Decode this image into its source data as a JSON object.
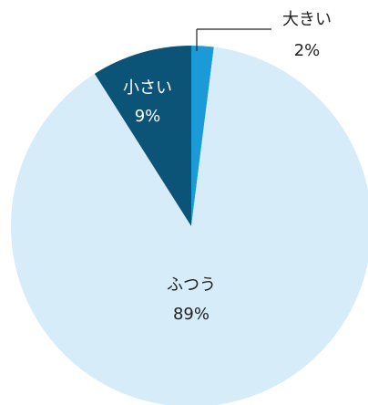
{
  "chart_data": {
    "type": "pie",
    "slices": [
      {
        "label": "大きい",
        "percent_label": "2%",
        "value": 2,
        "color": "#1a9ad6"
      },
      {
        "label": "ふつう",
        "percent_label": "89%",
        "value": 89,
        "color": "#d6ecf9"
      },
      {
        "label": "小さい",
        "percent_label": "9%",
        "value": 9,
        "color": "#0b5478"
      }
    ],
    "start_angle_deg": 0,
    "direction": "clockwise",
    "label_colors": {
      "dark_text": "#222222",
      "light_text": "#ffffff",
      "leader_line": "#222222"
    }
  }
}
